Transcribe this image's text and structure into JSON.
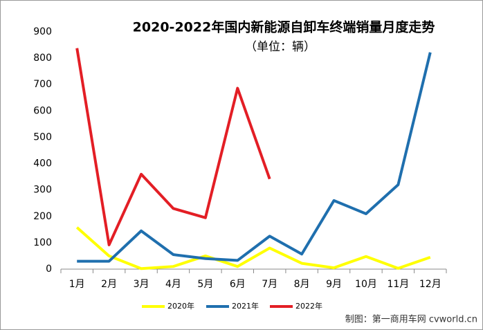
{
  "chart_data": {
    "type": "line",
    "title": "2020-2022年国内新能源自卸车终端销量月度走势",
    "subtitle": "（单位：辆）",
    "categories": [
      "1月",
      "2月",
      "3月",
      "4月",
      "5月",
      "6月",
      "7月",
      "8月",
      "9月",
      "10月",
      "11月",
      "12月"
    ],
    "series": [
      {
        "name": "2020年",
        "color": "#ffff00",
        "values": [
          158,
          50,
          2,
          10,
          50,
          10,
          80,
          22,
          5,
          48,
          3,
          45
        ]
      },
      {
        "name": "2021年",
        "color": "#1f6fae",
        "values": [
          30,
          30,
          145,
          55,
          40,
          33,
          125,
          57,
          260,
          210,
          320,
          822
        ]
      },
      {
        "name": "2022年",
        "color": "#e31e25",
        "values": [
          838,
          92,
          360,
          230,
          195,
          686,
          342,
          null,
          null,
          null,
          null,
          null
        ]
      }
    ],
    "ylim": [
      0,
      900
    ],
    "yticks": [
      0,
      100,
      200,
      300,
      400,
      500,
      600,
      700,
      800,
      900
    ],
    "grid": false,
    "legend": "bottom",
    "footer": "制图：第一商用车网 cvworld.cn"
  }
}
